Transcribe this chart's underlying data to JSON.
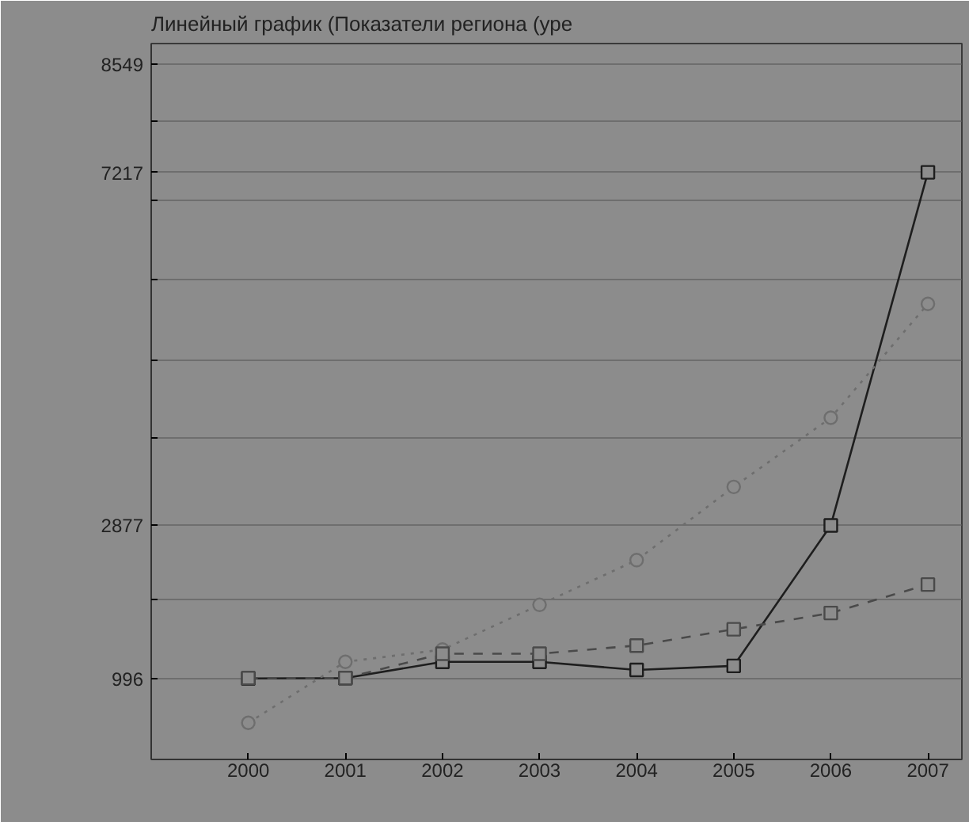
{
  "chart_data": {
    "type": "line",
    "title": "Линейный график (Показатели региона (уре",
    "x": [
      2000,
      2001,
      2002,
      2003,
      2004,
      2005,
      2006,
      2007
    ],
    "series": [
      {
        "color": "#1e1e1e",
        "marker": "square",
        "line_style": "solid",
        "values": [
          996,
          1000,
          1200,
          1200,
          1100,
          1150,
          2877,
          7217
        ]
      },
      {
        "color": "#6e6e6e",
        "marker": "circle",
        "line_style": "dotted",
        "values": [
          450,
          1200,
          1350,
          1900,
          2450,
          3350,
          4200,
          5600
        ]
      },
      {
        "color": "#4a4a4a",
        "marker": "square",
        "line_style": "dashed",
        "values": [
          1000,
          1000,
          1300,
          1300,
          1400,
          1600,
          1800,
          2150
        ]
      }
    ],
    "xlim": [
      1999,
      2007.35
    ],
    "xticks": [
      2000,
      2001,
      2002,
      2003,
      2004,
      2005,
      2006,
      2007
    ],
    "ylim": [
      0,
      8800
    ],
    "yticks": [
      996,
      {
        "value": 1963,
        "label": null
      },
      2877,
      {
        "value": 3947,
        "label": null
      },
      {
        "value": 4908,
        "label": null
      },
      {
        "value": 5890,
        "label": null
      },
      {
        "value": 6871,
        "label": null
      },
      7217,
      {
        "value": 7853,
        "label": null
      },
      8549
    ],
    "grid": "y"
  }
}
